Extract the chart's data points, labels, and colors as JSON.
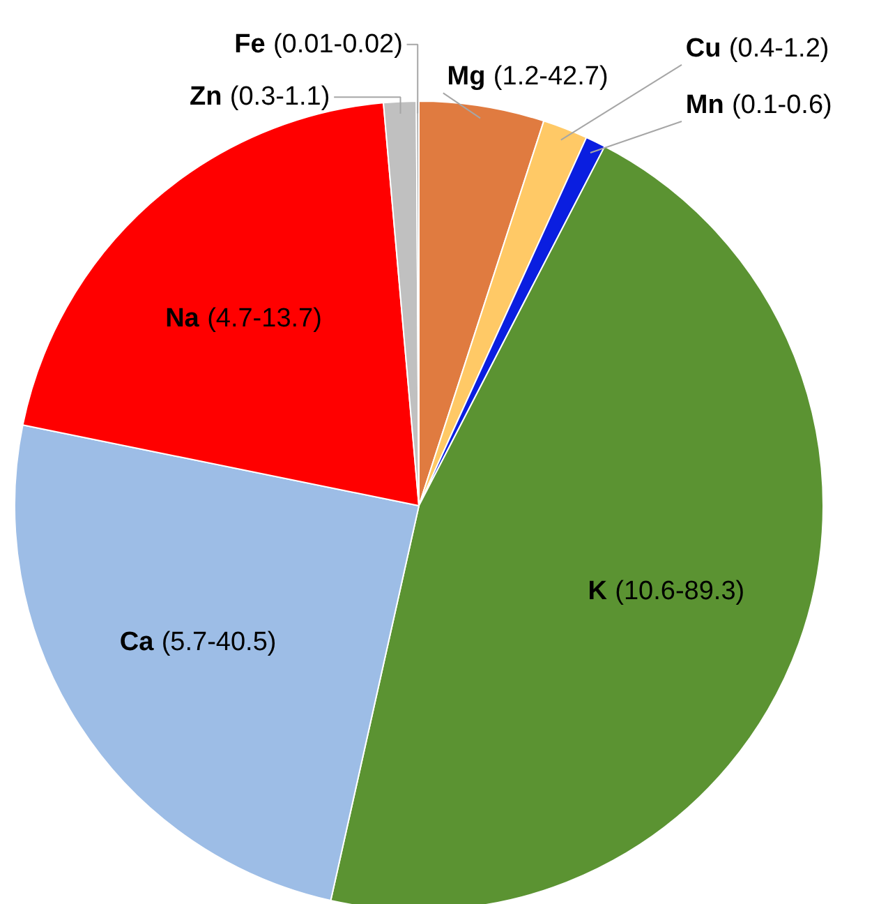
{
  "chart_data": {
    "type": "pie",
    "categories": [
      "Mg (1.2-42.7)",
      "Cu (0.4-1.2)",
      "Mn (0.1-0.6)",
      "K (10.6-89.3)",
      "Ca (5.7-40.5)",
      "Na (4.7-13.7)",
      "Zn (0.3-1.1)",
      "Fe (0.01-0.02)"
    ],
    "values": [
      5.0,
      1.8,
      0.8,
      45.9,
      24.7,
      20.4,
      1.3,
      0.1
    ],
    "colors": [
      "#e07b40",
      "#ffc966",
      "#0a1ee0",
      "#5b9332",
      "#9dbde6",
      "#ff0000",
      "#c0c0c0",
      "#a0a0a0"
    ]
  }
}
